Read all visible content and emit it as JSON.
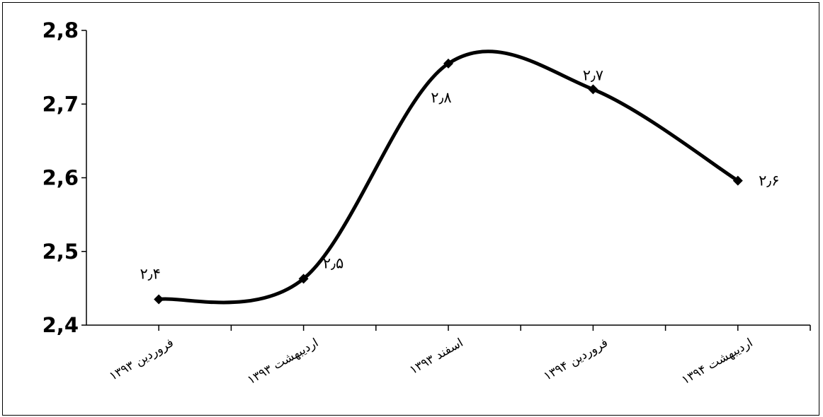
{
  "chart_data": {
    "type": "line",
    "title": "",
    "xlabel": "",
    "ylabel": "",
    "categories": [
      "فروردین ۱۳۹۳",
      "اردیبهشت ۱۳۹۳",
      "اسفند ۱۳۹۳",
      "فروردین ۱۳۹۴",
      "اردیبهشت ۱۳۹۴"
    ],
    "series": [
      {
        "values": [
          2.435,
          2.463,
          2.755,
          2.72,
          2.596
        ],
        "data_labels": [
          "۲٫۴",
          "۲٫۵",
          "۲٫۸",
          "۲٫۷",
          "۲٫۶"
        ]
      }
    ],
    "yticks": [
      "2,4",
      "2,5",
      "2,6",
      "2,7",
      "2,8"
    ],
    "ylim": [
      2.4,
      2.8
    ],
    "grid": false,
    "legend": "none",
    "line_color": "#000000",
    "marker": "diamond",
    "smooth": true
  }
}
